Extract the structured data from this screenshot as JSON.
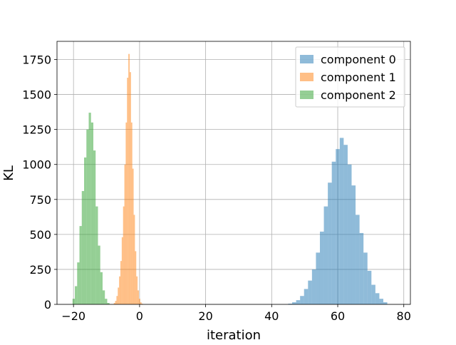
{
  "chart_data": {
    "type": "histogram",
    "title": "",
    "xlabel": "iteration",
    "ylabel": "KL",
    "xlim": [
      -25,
      82
    ],
    "ylim": [
      0,
      1880
    ],
    "xticks": [
      -20,
      0,
      20,
      40,
      60,
      80
    ],
    "yticks": [
      0,
      250,
      500,
      750,
      1000,
      1250,
      1500,
      1750
    ],
    "grid": true,
    "legend_position": "top-right",
    "series": [
      {
        "name": "component 0",
        "color": "#1f77b4",
        "alpha": 0.5,
        "bin_edges": [
          45.0,
          46.2,
          47.4,
          48.6,
          49.8,
          51.0,
          52.2,
          53.4,
          54.6,
          55.8,
          57.0,
          58.2,
          59.4,
          60.6,
          61.8,
          63.0,
          64.2,
          65.4,
          66.6,
          67.8,
          69.0,
          70.2,
          71.4,
          72.6,
          73.8,
          75.0
        ],
        "counts": [
          5,
          15,
          30,
          60,
          110,
          170,
          250,
          370,
          520,
          700,
          870,
          1020,
          1110,
          1190,
          1140,
          1000,
          850,
          640,
          510,
          370,
          240,
          140,
          80,
          40,
          15
        ]
      },
      {
        "name": "component 1",
        "color": "#ff7f0e",
        "alpha": 0.5,
        "bin_edges": [
          -7.8,
          -7.4,
          -7.0,
          -6.6,
          -6.2,
          -5.8,
          -5.4,
          -5.0,
          -4.6,
          -4.2,
          -3.8,
          -3.4,
          -3.0,
          -2.6,
          -2.2,
          -1.8,
          -1.4,
          -1.0,
          -0.6,
          -0.2,
          0.2,
          0.6,
          1.0
        ],
        "counts": [
          10,
          25,
          60,
          120,
          200,
          310,
          480,
          700,
          1000,
          1300,
          1620,
          1790,
          1660,
          1300,
          970,
          640,
          380,
          200,
          100,
          40,
          15,
          5
        ]
      },
      {
        "name": "component 2",
        "color": "#2ca02c",
        "alpha": 0.5,
        "bin_edges": [
          -20.3,
          -19.6,
          -18.9,
          -18.2,
          -17.5,
          -16.8,
          -16.1,
          -15.4,
          -14.7,
          -14.0,
          -13.3,
          -12.6,
          -11.9,
          -11.2,
          -10.5,
          -9.8,
          -9.1
        ],
        "counts": [
          40,
          130,
          300,
          560,
          810,
          1050,
          1250,
          1370,
          1300,
          1100,
          700,
          420,
          230,
          100,
          40,
          10
        ]
      }
    ]
  }
}
